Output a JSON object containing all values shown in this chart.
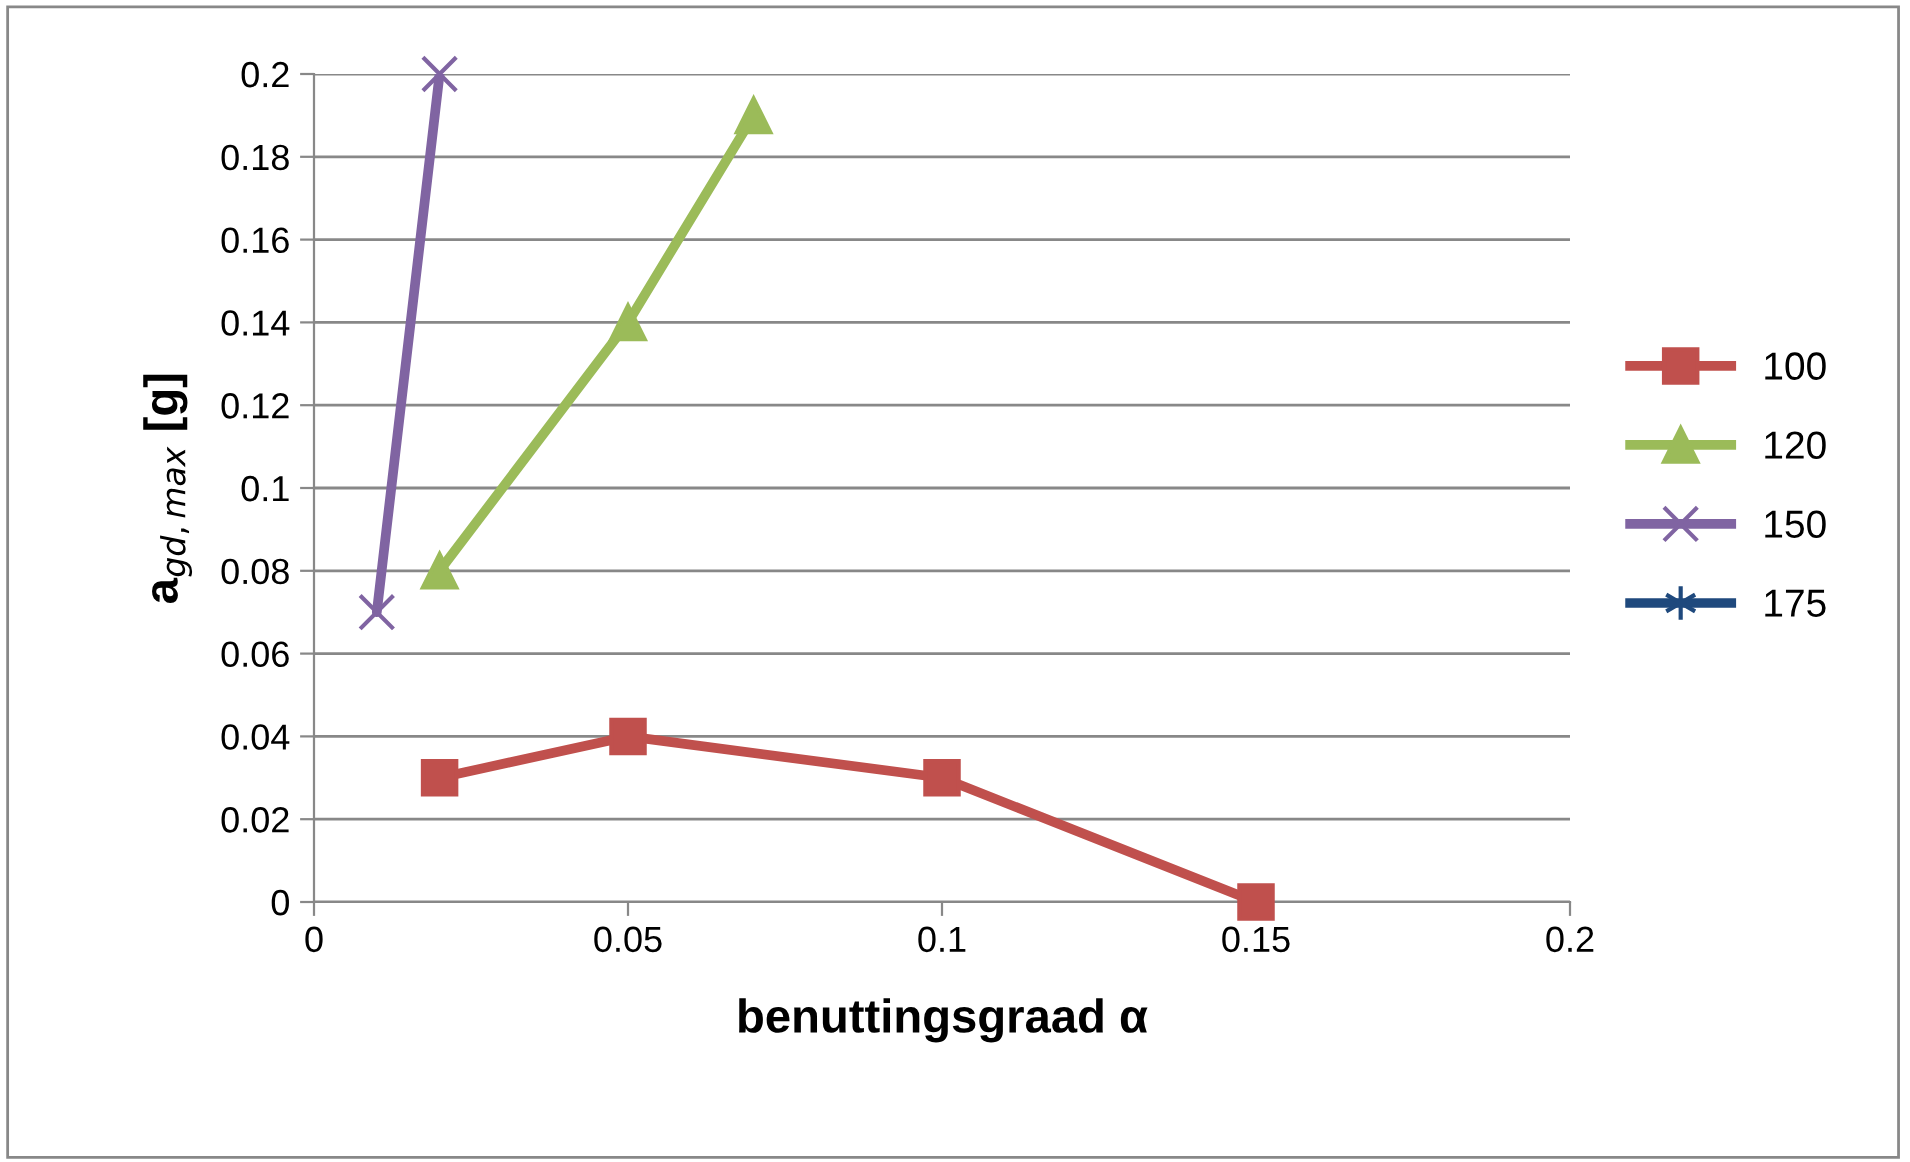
{
  "chart_data": {
    "type": "line",
    "xlabel": "benuttingsgraad α",
    "ylabel": "a$_{gd,max}$ [g]",
    "xlim": [
      0,
      0.2
    ],
    "xticks": [
      0,
      0.05,
      0.1,
      0.15,
      0.2
    ],
    "ylim": [
      0,
      0.2
    ],
    "yticks": [
      0,
      0.02,
      0.04,
      0.06,
      0.08,
      0.1,
      0.12,
      0.14,
      0.16,
      0.18,
      0.2
    ],
    "grid": "y",
    "legend": "right",
    "series": [
      {
        "name": "100",
        "color": "#c0504d",
        "marker": "square",
        "x": [
          0.02,
          0.05,
          0.1,
          0.15
        ],
        "values": [
          0.03,
          0.04,
          0.03,
          0
        ]
      },
      {
        "name": "120",
        "color": "#9bbb59",
        "marker": "triangle",
        "x": [
          0.02,
          0.05,
          0.07
        ],
        "values": [
          0.08,
          0.14,
          0.19
        ]
      },
      {
        "name": "150",
        "color": "#8064a2",
        "marker": "cross",
        "x": [
          0.01,
          0.02
        ],
        "values": [
          0.07,
          0.2
        ]
      },
      {
        "name": "175",
        "color": "#1f497d",
        "marker": "star"
      }
    ]
  }
}
